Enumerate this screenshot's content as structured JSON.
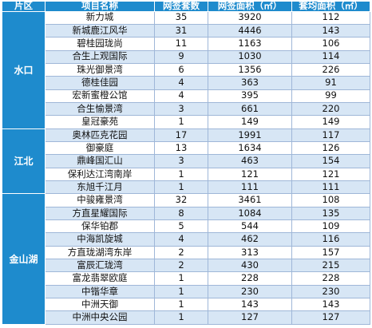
{
  "headers": {
    "region": "片区",
    "name": "项目名称",
    "count": "网签套数",
    "area": "网签面积（㎡）",
    "avg": "套均面积（㎡）"
  },
  "groups": [
    {
      "region": "水口",
      "rows": [
        {
          "name": "新力城",
          "count": "35",
          "area": "3920",
          "avg": "112"
        },
        {
          "name": "新城鹿江风华",
          "count": "31",
          "area": "4446",
          "avg": "143"
        },
        {
          "name": "碧桂园珑尚",
          "count": "11",
          "area": "1163",
          "avg": "106"
        },
        {
          "name": "合生上观国际",
          "count": "9",
          "area": "1030",
          "avg": "114"
        },
        {
          "name": "珠光御景湾",
          "count": "6",
          "area": "1356",
          "avg": "226"
        },
        {
          "name": "德桂佳园",
          "count": "4",
          "area": "363",
          "avg": "91"
        },
        {
          "name": "宏新蜜橙公馆",
          "count": "4",
          "area": "395",
          "avg": "99"
        },
        {
          "name": "合生愉景湾",
          "count": "3",
          "area": "661",
          "avg": "220"
        },
        {
          "name": "皇冠豪苑",
          "count": "1",
          "area": "149",
          "avg": "149"
        }
      ]
    },
    {
      "region": "江北",
      "rows": [
        {
          "name": "奥林匹克花园",
          "count": "17",
          "area": "1991",
          "avg": "117"
        },
        {
          "name": "御豪庭",
          "count": "13",
          "area": "1634",
          "avg": "126"
        },
        {
          "name": "鼎峰国汇山",
          "count": "3",
          "area": "463",
          "avg": "154"
        },
        {
          "name": "保利达江湾南岸",
          "count": "1",
          "area": "121",
          "avg": "121"
        },
        {
          "name": "东旭千江月",
          "count": "1",
          "area": "111",
          "avg": "111"
        }
      ]
    },
    {
      "region": "金山湖",
      "rows": [
        {
          "name": "中骏雍景湾",
          "count": "32",
          "area": "3461",
          "avg": "108"
        },
        {
          "name": "方直星耀国际",
          "count": "8",
          "area": "1084",
          "avg": "135"
        },
        {
          "name": "保华铂郡",
          "count": "5",
          "area": "544",
          "avg": "109"
        },
        {
          "name": "中海凯旋城",
          "count": "4",
          "area": "462",
          "avg": "116"
        },
        {
          "name": "方直珑湖湾东岸",
          "count": "2",
          "area": "313",
          "avg": "157"
        },
        {
          "name": "富辰汇珑湾",
          "count": "2",
          "area": "430",
          "avg": "215"
        },
        {
          "name": "富龙翡翠欧庭",
          "count": "1",
          "area": "228",
          "avg": "228"
        },
        {
          "name": "中锴华章",
          "count": "1",
          "area": "230",
          "avg": "230"
        },
        {
          "name": "中洲天御",
          "count": "1",
          "area": "143",
          "avg": "143"
        },
        {
          "name": "中洲中央公园",
          "count": "1",
          "area": "127",
          "avg": "127"
        }
      ]
    }
  ]
}
